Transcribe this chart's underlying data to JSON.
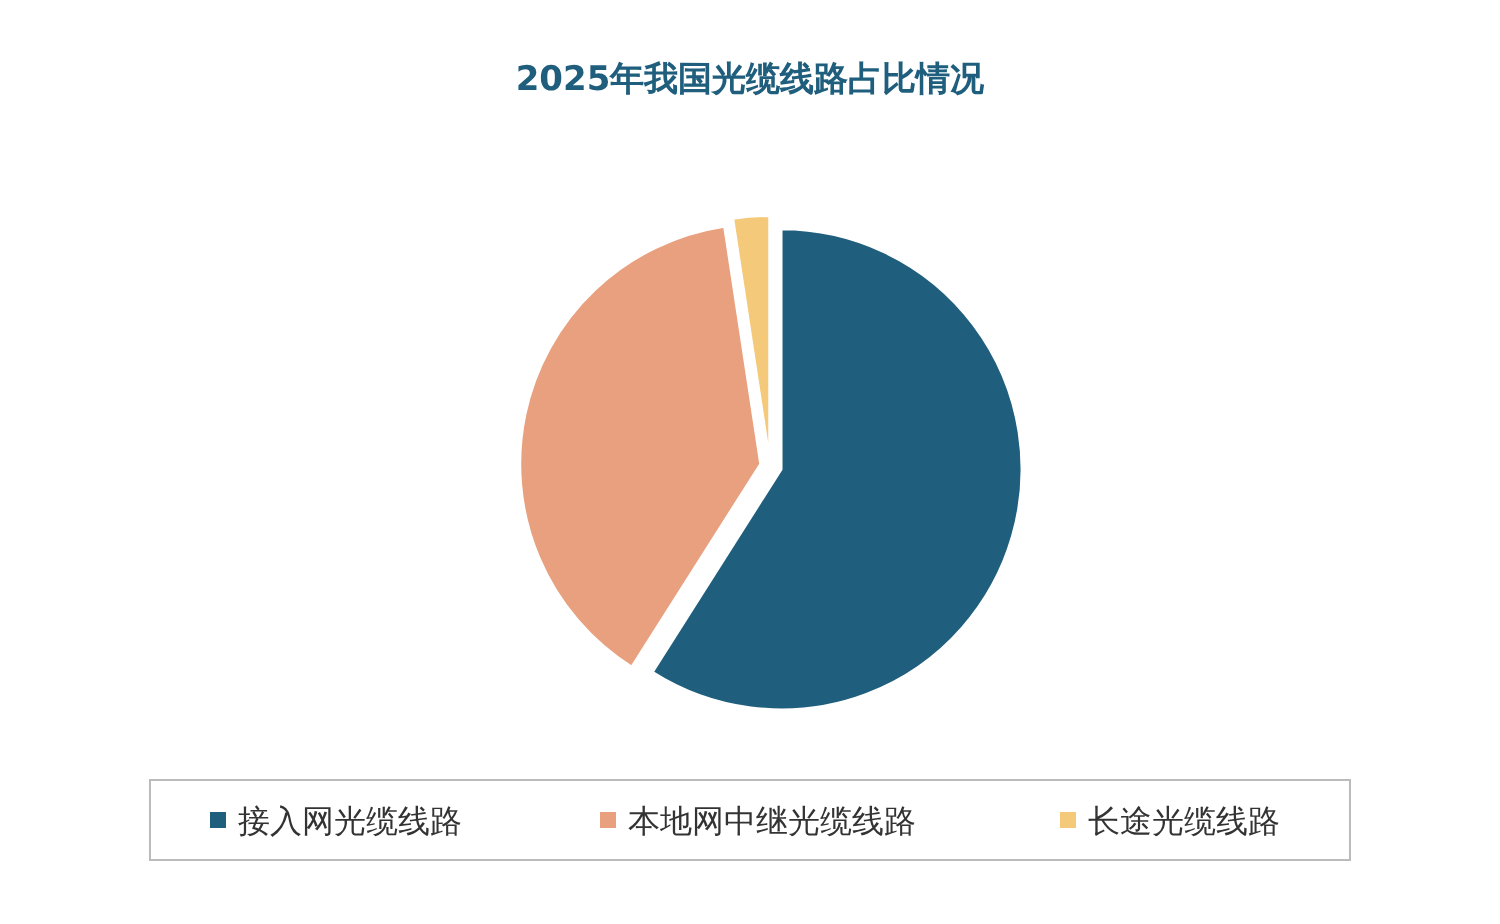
{
  "chart_data": {
    "type": "pie",
    "title": "2025年我国光缆线路占比情况",
    "categories": [
      "接入网光缆线路",
      "本地网中继光缆线路",
      "长途光缆线路"
    ],
    "values": [
      59,
      38.6,
      2.4
    ],
    "colors": [
      "#1f5f7d",
      "#e8a07e",
      "#f5c97a"
    ],
    "legend": "bottom"
  }
}
